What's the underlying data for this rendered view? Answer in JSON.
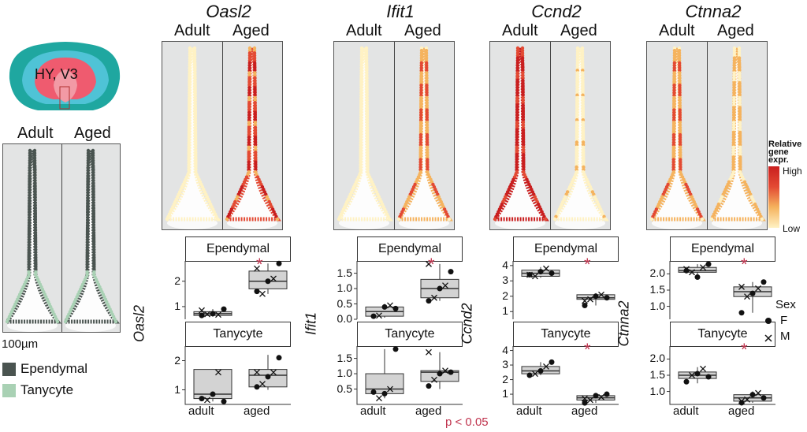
{
  "brain": {
    "region_label": "HY, V3"
  },
  "left_panel": {
    "adult_label": "Adult",
    "aged_label": "Aged",
    "scale_label": "100µm"
  },
  "celltype_legend": [
    {
      "label": "Ependymal",
      "color": "#4a5450"
    },
    {
      "label": "Tanycyte",
      "color": "#a9d1b4"
    }
  ],
  "gradient_legend": {
    "title": "Relative gene expr.",
    "high": "High",
    "low": "Low",
    "colors": [
      "#fff2c4",
      "#f5b35e",
      "#e34a33",
      "#c91f1f"
    ]
  },
  "sex_legend": {
    "title": "Sex",
    "items": [
      "F",
      "M"
    ]
  },
  "pvalue_note": "p < 0.05",
  "conditions": {
    "adult": "Adult",
    "aged": "Aged"
  },
  "facets": {
    "top": "Ependymal",
    "bottom": "Tanycyte"
  },
  "x_categories": [
    "adult",
    "aged"
  ],
  "genes": [
    {
      "name": "Oasl2",
      "ylabel": "Oasl2",
      "top": {
        "ticks": [
          "2",
          "1"
        ],
        "ylim": [
          0.5,
          2.8
        ],
        "significant": true,
        "adult": {
          "q1": 0.65,
          "med": 0.72,
          "q3": 0.8,
          "lo": 0.6,
          "hi": 0.9,
          "pts": [
            0.65,
            0.7,
            0.72,
            0.68,
            0.9,
            0.85
          ]
        },
        "aged": {
          "q1": 1.7,
          "med": 2.0,
          "q3": 2.4,
          "lo": 1.5,
          "hi": 2.7,
          "pts": [
            1.6,
            1.5,
            2.0,
            2.1,
            2.7,
            2.5
          ]
        }
      },
      "bottom": {
        "ticks": [
          "2",
          "1"
        ],
        "ylim": [
          0.5,
          2.5
        ],
        "significant": false,
        "adult": {
          "q1": 0.7,
          "med": 0.85,
          "q3": 1.7,
          "lo": 0.6,
          "hi": 1.7,
          "pts": [
            0.7,
            0.65,
            0.85,
            1.6,
            0.6
          ]
        },
        "aged": {
          "q1": 1.1,
          "med": 1.5,
          "q3": 1.7,
          "lo": 1.0,
          "hi": 2.2,
          "pts": [
            1.1,
            1.2,
            1.45,
            1.6,
            2.1,
            1.6
          ]
        }
      }
    },
    {
      "name": "Ifit1",
      "ylabel": "Ifit1",
      "top": {
        "ticks": [
          "1.5",
          "1.0",
          "0.5",
          "0.0"
        ],
        "ylim": [
          0,
          1.9
        ],
        "significant": true,
        "adult": {
          "q1": 0.1,
          "med": 0.25,
          "q3": 0.4,
          "lo": 0.05,
          "hi": 0.5,
          "pts": [
            0.1,
            0.12,
            0.4,
            0.45,
            0.35
          ]
        },
        "aged": {
          "q1": 0.7,
          "med": 1.0,
          "q3": 1.3,
          "lo": 0.6,
          "hi": 1.8,
          "pts": [
            0.6,
            0.7,
            1.0,
            1.1,
            1.55,
            1.8
          ]
        }
      },
      "bottom": {
        "ticks": [
          "1.5",
          "1.0",
          "0.5"
        ],
        "ylim": [
          0,
          1.9
        ],
        "significant": false,
        "adult": {
          "q1": 0.35,
          "med": 0.5,
          "q3": 1.0,
          "lo": 0.2,
          "hi": 1.8,
          "pts": [
            0.4,
            0.2,
            0.35,
            0.5,
            1.8
          ]
        },
        "aged": {
          "q1": 0.75,
          "med": 1.05,
          "q3": 1.1,
          "lo": 0.5,
          "hi": 1.7,
          "pts": [
            0.6,
            0.8,
            1.0,
            1.1,
            1.05,
            1.7
          ]
        }
      }
    },
    {
      "name": "Ccnd2",
      "ylabel": "Ccnd2",
      "top": {
        "ticks": [
          "4",
          "3",
          "2",
          "1"
        ],
        "ylim": [
          0.5,
          4.3
        ],
        "significant": true,
        "adult": {
          "q1": 3.3,
          "med": 3.5,
          "q3": 3.7,
          "lo": 3.2,
          "hi": 3.9,
          "pts": [
            3.4,
            3.3,
            3.6,
            3.8,
            3.5,
            3.4
          ]
        },
        "aged": {
          "q1": 1.8,
          "med": 1.9,
          "q3": 2.1,
          "lo": 1.4,
          "hi": 2.2,
          "pts": [
            1.4,
            1.8,
            2.0,
            2.1,
            1.9,
            1.7
          ]
        }
      },
      "bottom": {
        "ticks": [
          "4",
          "3",
          "2",
          "1"
        ],
        "ylim": [
          0.3,
          4.3
        ],
        "significant": true,
        "adult": {
          "q1": 2.4,
          "med": 2.6,
          "q3": 2.9,
          "lo": 2.3,
          "hi": 3.2,
          "pts": [
            2.3,
            2.4,
            2.6,
            2.9,
            3.2
          ]
        },
        "aged": {
          "q1": 0.6,
          "med": 0.75,
          "q3": 0.9,
          "lo": 0.4,
          "hi": 1.0,
          "pts": [
            0.4,
            0.6,
            0.9,
            0.8,
            1.0,
            0.7
          ]
        }
      }
    },
    {
      "name": "Ctnna2",
      "ylabel": "Ctnna2",
      "top": {
        "ticks": [
          "2.0",
          "1.5",
          "1.0"
        ],
        "ylim": [
          0.6,
          2.4
        ],
        "significant": true,
        "adult": {
          "q1": 2.05,
          "med": 2.1,
          "q3": 2.2,
          "lo": 1.9,
          "hi": 2.3,
          "pts": [
            2.1,
            2.05,
            1.9,
            2.2,
            2.3,
            2.15
          ]
        },
        "aged": {
          "q1": 1.3,
          "med": 1.45,
          "q3": 1.6,
          "lo": 0.8,
          "hi": 1.75,
          "pts": [
            0.8,
            1.3,
            1.4,
            1.55,
            1.75,
            1.6
          ]
        }
      },
      "bottom": {
        "ticks": [
          "2.0",
          "1.5",
          "1.0"
        ],
        "ylim": [
          0.6,
          2.4
        ],
        "significant": true,
        "adult": {
          "q1": 1.4,
          "med": 1.5,
          "q3": 1.6,
          "lo": 1.25,
          "hi": 1.75,
          "pts": [
            1.3,
            1.5,
            1.55,
            1.7,
            1.45
          ]
        },
        "aged": {
          "q1": 0.7,
          "med": 0.8,
          "q3": 0.9,
          "lo": 0.65,
          "hi": 1.0,
          "pts": [
            0.65,
            0.75,
            0.9,
            0.95,
            0.8,
            0.7
          ]
        }
      }
    }
  ]
}
